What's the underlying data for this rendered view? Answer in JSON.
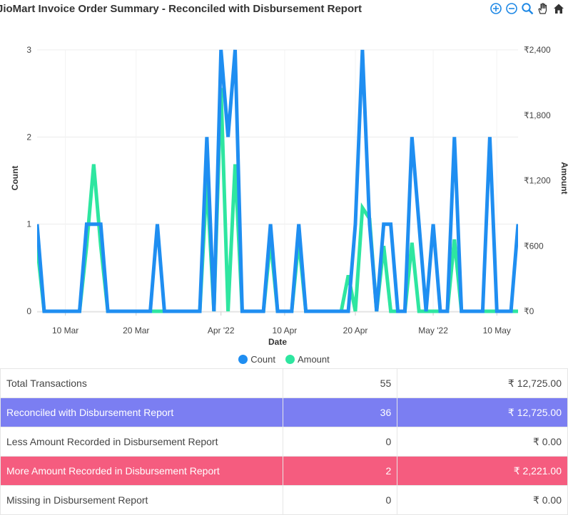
{
  "title": "JioMart Invoice Order Summary - Reconciled with Disbursement Report",
  "toolbar": {
    "icons": [
      "zoom-in-icon",
      "zoom-out-icon",
      "magnify-icon",
      "pan-hand-icon",
      "home-icon"
    ],
    "accent": "#1e88e5"
  },
  "legend": {
    "count_label": "Count",
    "amount_label": "Amount"
  },
  "chart_data": {
    "type": "line",
    "xlabel": "Date",
    "ylabel_left": "Count",
    "ylabel_right": "Amount",
    "x_ticks": [
      "10 Mar",
      "20 Mar",
      "Apr '22",
      "10 Apr",
      "20 Apr",
      "May '22",
      "10 May"
    ],
    "y_left_ticks": [
      "0",
      "1",
      "2",
      "3"
    ],
    "y_right_ticks": [
      "₹0",
      "₹600",
      "₹1,200",
      "₹1,800",
      "₹2,400"
    ],
    "y_left_range": [
      0,
      3
    ],
    "y_right_range": [
      0,
      2400
    ],
    "x_range": [
      "2022-03-06",
      "2022-05-13"
    ],
    "grid": true,
    "legend_position": "bottom",
    "series": [
      {
        "name": "Count",
        "color": "#1f8ef1",
        "axis": "left",
        "points": [
          [
            "2022-03-06",
            1
          ],
          [
            "2022-03-07",
            0
          ],
          [
            "2022-03-08",
            0
          ],
          [
            "2022-03-09",
            0
          ],
          [
            "2022-03-10",
            0
          ],
          [
            "2022-03-11",
            0
          ],
          [
            "2022-03-12",
            0
          ],
          [
            "2022-03-13",
            1
          ],
          [
            "2022-03-14",
            1
          ],
          [
            "2022-03-15",
            1
          ],
          [
            "2022-03-16",
            0
          ],
          [
            "2022-03-17",
            0
          ],
          [
            "2022-03-18",
            0
          ],
          [
            "2022-03-19",
            0
          ],
          [
            "2022-03-20",
            0
          ],
          [
            "2022-03-21",
            0
          ],
          [
            "2022-03-22",
            0
          ],
          [
            "2022-03-23",
            1
          ],
          [
            "2022-03-24",
            0
          ],
          [
            "2022-03-25",
            0
          ],
          [
            "2022-03-26",
            0
          ],
          [
            "2022-03-27",
            0
          ],
          [
            "2022-03-28",
            0
          ],
          [
            "2022-03-29",
            0
          ],
          [
            "2022-03-30",
            2
          ],
          [
            "2022-03-31",
            0
          ],
          [
            "2022-04-01",
            3
          ],
          [
            "2022-04-02",
            2
          ],
          [
            "2022-04-03",
            3
          ],
          [
            "2022-04-04",
            0
          ],
          [
            "2022-04-05",
            0
          ],
          [
            "2022-04-06",
            0
          ],
          [
            "2022-04-07",
            0
          ],
          [
            "2022-04-08",
            1
          ],
          [
            "2022-04-09",
            0
          ],
          [
            "2022-04-10",
            0
          ],
          [
            "2022-04-11",
            0
          ],
          [
            "2022-04-12",
            1
          ],
          [
            "2022-04-13",
            0
          ],
          [
            "2022-04-14",
            0
          ],
          [
            "2022-04-15",
            0
          ],
          [
            "2022-04-16",
            0
          ],
          [
            "2022-04-17",
            0
          ],
          [
            "2022-04-18",
            0
          ],
          [
            "2022-04-19",
            0
          ],
          [
            "2022-04-20",
            1
          ],
          [
            "2022-04-21",
            3
          ],
          [
            "2022-04-22",
            1
          ],
          [
            "2022-04-23",
            0
          ],
          [
            "2022-04-24",
            1
          ],
          [
            "2022-04-25",
            1
          ],
          [
            "2022-04-26",
            0
          ],
          [
            "2022-04-27",
            0
          ],
          [
            "2022-04-28",
            2
          ],
          [
            "2022-04-29",
            1
          ],
          [
            "2022-04-30",
            0
          ],
          [
            "2022-05-01",
            1
          ],
          [
            "2022-05-02",
            0
          ],
          [
            "2022-05-03",
            0
          ],
          [
            "2022-05-04",
            2
          ],
          [
            "2022-05-05",
            0
          ],
          [
            "2022-05-06",
            0
          ],
          [
            "2022-05-07",
            0
          ],
          [
            "2022-05-08",
            0
          ],
          [
            "2022-05-09",
            2
          ],
          [
            "2022-05-10",
            0
          ],
          [
            "2022-05-11",
            0
          ],
          [
            "2022-05-12",
            0
          ],
          [
            "2022-05-13",
            1
          ],
          [
            "2022-05-14",
            0
          ],
          [
            "2022-05-15",
            0
          ],
          [
            "2022-05-16",
            0
          ],
          [
            "2022-05-17",
            0
          ]
        ]
      },
      {
        "name": "Amount",
        "color": "#2ee6a0",
        "axis": "right",
        "points": [
          [
            "2022-03-06",
            600
          ],
          [
            "2022-03-07",
            0
          ],
          [
            "2022-03-08",
            0
          ],
          [
            "2022-03-09",
            0
          ],
          [
            "2022-03-10",
            0
          ],
          [
            "2022-03-11",
            0
          ],
          [
            "2022-03-12",
            0
          ],
          [
            "2022-03-13",
            600
          ],
          [
            "2022-03-14",
            1350
          ],
          [
            "2022-03-15",
            600
          ],
          [
            "2022-03-16",
            0
          ],
          [
            "2022-03-17",
            0
          ],
          [
            "2022-03-18",
            0
          ],
          [
            "2022-03-19",
            0
          ],
          [
            "2022-03-20",
            0
          ],
          [
            "2022-03-21",
            0
          ],
          [
            "2022-03-22",
            0
          ],
          [
            "2022-03-23",
            0
          ],
          [
            "2022-03-24",
            0
          ],
          [
            "2022-03-25",
            0
          ],
          [
            "2022-03-26",
            0
          ],
          [
            "2022-03-27",
            0
          ],
          [
            "2022-03-28",
            0
          ],
          [
            "2022-03-29",
            0
          ],
          [
            "2022-03-30",
            1200
          ],
          [
            "2022-03-31",
            0
          ],
          [
            "2022-04-01",
            2050
          ],
          [
            "2022-04-02",
            0
          ],
          [
            "2022-04-03",
            1350
          ],
          [
            "2022-04-04",
            0
          ],
          [
            "2022-04-05",
            0
          ],
          [
            "2022-04-06",
            0
          ],
          [
            "2022-04-07",
            0
          ],
          [
            "2022-04-08",
            650
          ],
          [
            "2022-04-09",
            0
          ],
          [
            "2022-04-10",
            0
          ],
          [
            "2022-04-11",
            0
          ],
          [
            "2022-04-12",
            650
          ],
          [
            "2022-04-13",
            0
          ],
          [
            "2022-04-14",
            0
          ],
          [
            "2022-04-15",
            0
          ],
          [
            "2022-04-16",
            0
          ],
          [
            "2022-04-17",
            0
          ],
          [
            "2022-04-18",
            0
          ],
          [
            "2022-04-19",
            330
          ],
          [
            "2022-04-20",
            0
          ],
          [
            "2022-04-21",
            950
          ],
          [
            "2022-04-22",
            850
          ],
          [
            "2022-04-23",
            0
          ],
          [
            "2022-04-24",
            600
          ],
          [
            "2022-04-25",
            0
          ],
          [
            "2022-04-26",
            0
          ],
          [
            "2022-04-27",
            0
          ],
          [
            "2022-04-28",
            630
          ],
          [
            "2022-04-29",
            0
          ],
          [
            "2022-04-30",
            0
          ],
          [
            "2022-05-01",
            0
          ],
          [
            "2022-05-02",
            0
          ],
          [
            "2022-05-03",
            0
          ],
          [
            "2022-05-04",
            660
          ],
          [
            "2022-05-05",
            0
          ],
          [
            "2022-05-06",
            0
          ],
          [
            "2022-05-07",
            0
          ],
          [
            "2022-05-08",
            0
          ],
          [
            "2022-05-09",
            0
          ],
          [
            "2022-05-10",
            0
          ],
          [
            "2022-05-11",
            0
          ],
          [
            "2022-05-12",
            0
          ],
          [
            "2022-05-13",
            0
          ],
          [
            "2022-05-14",
            0
          ],
          [
            "2022-05-15",
            0
          ],
          [
            "2022-05-16",
            0
          ],
          [
            "2022-05-17",
            0
          ]
        ]
      }
    ]
  },
  "summary": {
    "rows": [
      {
        "label": "Total Transactions",
        "count": "55",
        "amount": "₹ 12,725.00",
        "style": "plain"
      },
      {
        "label": "Reconciled with Disbursement Report",
        "count": "36",
        "amount": "₹ 12,725.00",
        "style": "hl-blue"
      },
      {
        "label": "Less Amount Recorded in Disbursement Report",
        "count": "0",
        "amount": "₹ 0.00",
        "style": "plain"
      },
      {
        "label": "More Amount Recorded in Disbursement Report",
        "count": "2",
        "amount": "₹ 2,221.00",
        "style": "hl-red"
      },
      {
        "label": "Missing in Disbursement Report",
        "count": "0",
        "amount": "₹ 0.00",
        "style": "plain"
      }
    ]
  }
}
